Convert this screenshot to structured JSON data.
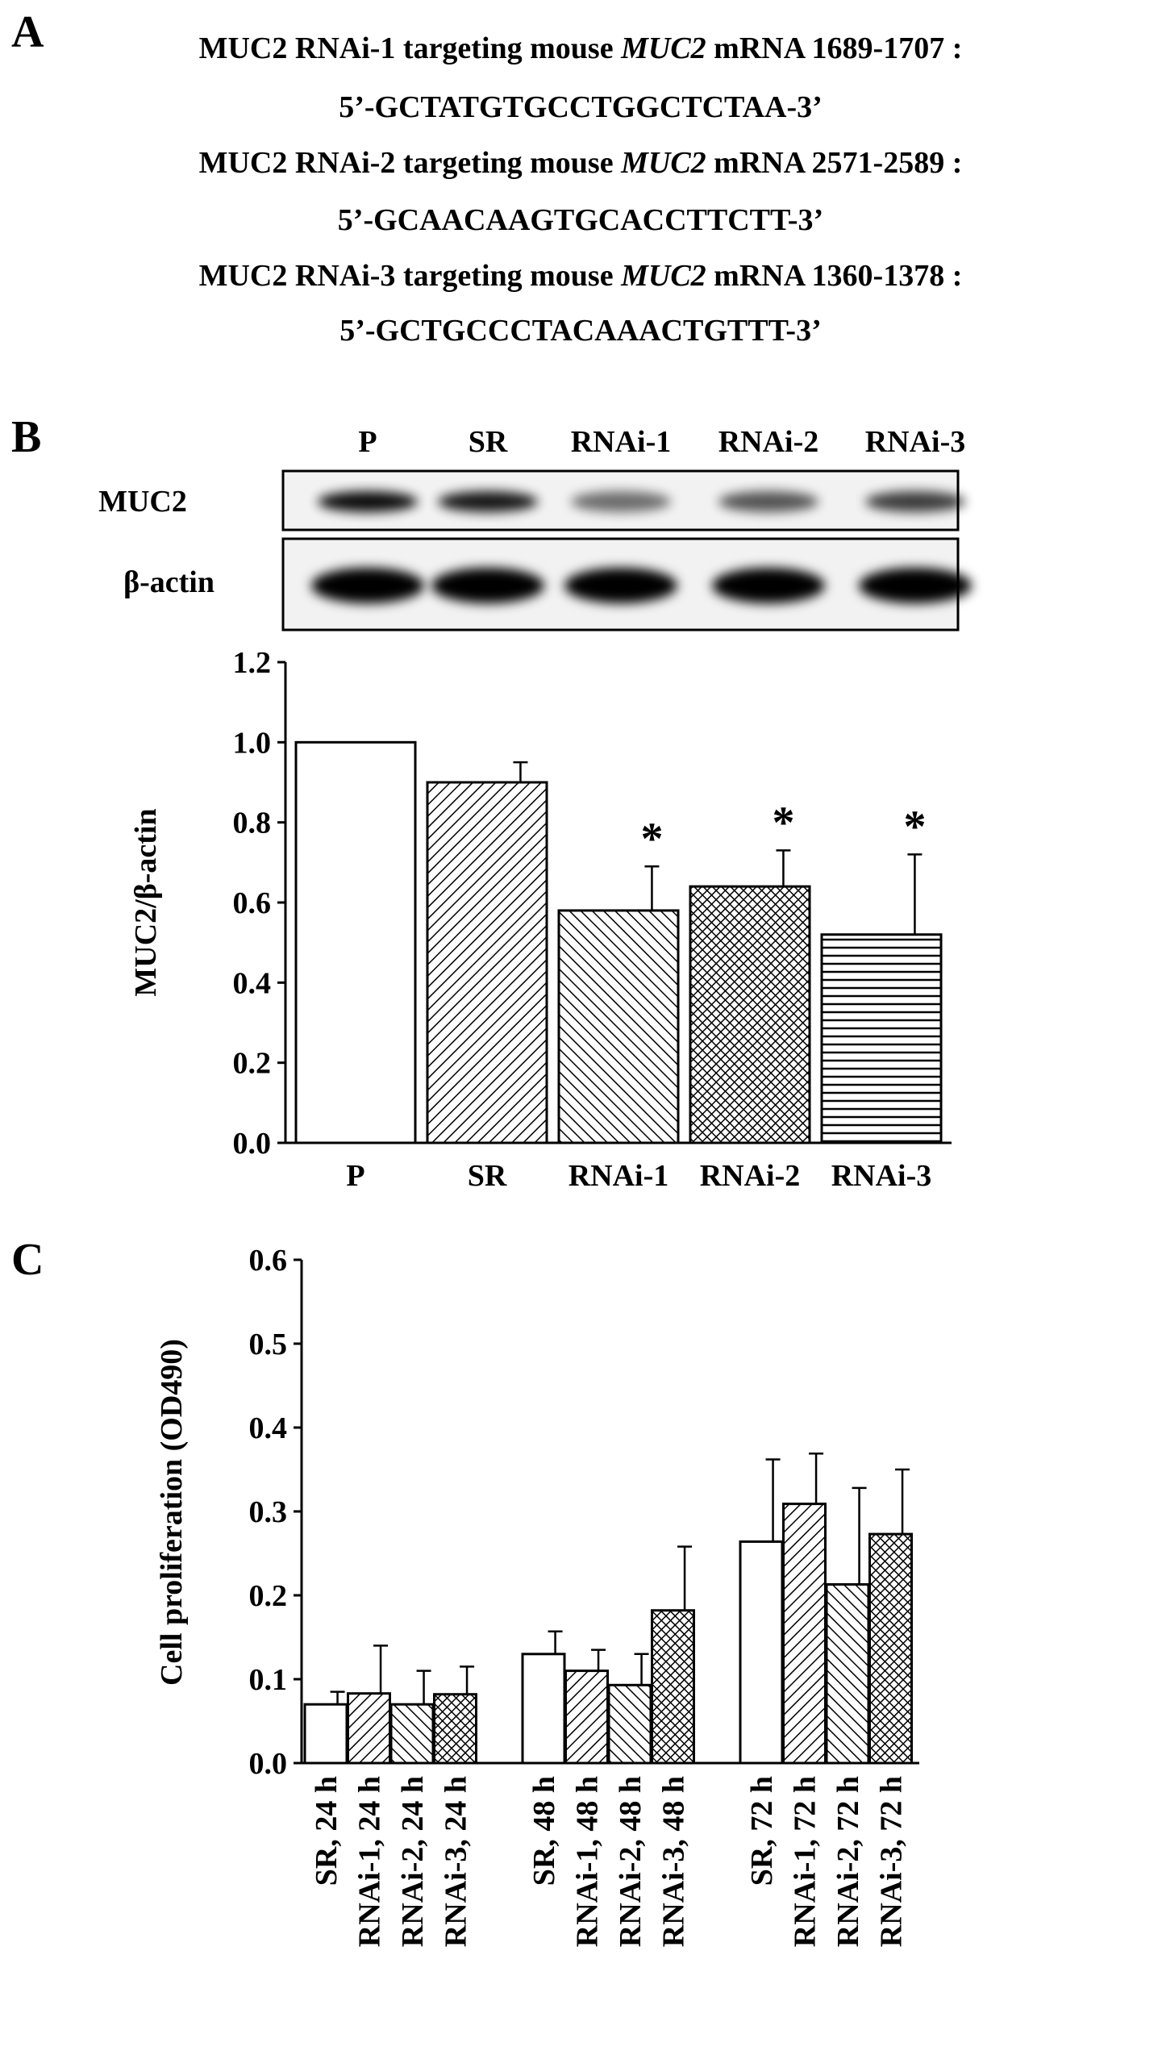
{
  "panel_a": {
    "label": "A",
    "lines": [
      {
        "before": "MUC2 RNAi-1 targeting mouse ",
        "italic": "MUC2",
        "after": " mRNA 1689-1707 :",
        "sequence": "5’-GCTATGTGCCTGGCTCTAA-3’"
      },
      {
        "before": "MUC2 RNAi-2 targeting mouse ",
        "italic": "MUC2",
        "after": " mRNA 2571-2589 :",
        "sequence": "5’-GCAACAAGTGCACCTTCTT-3’"
      },
      {
        "before": "MUC2 RNAi-3 targeting mouse ",
        "italic": "MUC2",
        "after": " mRNA 1360-1378 :",
        "sequence": "5’-GCTGCCCTACAAACTGTTT-3’"
      }
    ]
  },
  "blot": {
    "label": "B",
    "lanes": [
      "P",
      "SR",
      "RNAi-1",
      "RNAi-2",
      "RNAi-3"
    ],
    "rows": [
      "MUC2",
      "β-actin"
    ]
  },
  "chart_data": [
    {
      "type": "bar",
      "y_label": "MUC2/β-actin",
      "categories": [
        "P",
        "SR",
        "RNAi-1",
        "RNAi-2",
        "RNAi-3"
      ],
      "values": [
        1.0,
        0.9,
        0.58,
        0.64,
        0.52
      ],
      "errors": [
        null,
        0.05,
        0.11,
        0.09,
        0.2
      ],
      "significance": [
        null,
        null,
        "*",
        "*",
        "*"
      ],
      "patterns": [
        "none",
        "forward",
        "back",
        "cross",
        "horizontal"
      ],
      "color": "#000000",
      "ylim": [
        0,
        1.2
      ],
      "yticks": [
        {
          "value": 0,
          "label": "0.0"
        },
        {
          "value": 0.2,
          "label": "0.2"
        },
        {
          "value": 0.4,
          "label": "0.4"
        },
        {
          "value": 0.6,
          "label": "0.6"
        },
        {
          "value": 0.8,
          "label": "0.8"
        },
        {
          "value": 1.0,
          "label": "1.0"
        },
        {
          "value": 1.2,
          "label": "1.2"
        }
      ]
    },
    {
      "type": "bar",
      "panel_label": "C",
      "y_label": "Cell proliferation (OD490)",
      "categories": [
        "SR, 24 h",
        "RNAi-1, 24 h",
        "RNAi-2, 24 h",
        "RNAi-3, 24 h",
        "SR, 48 h",
        "RNAi-1, 48 h",
        "RNAi-2, 48 h",
        "RNAi-3, 48 h",
        "SR, 72 h",
        "RNAi-1, 72 h",
        "RNAi-2, 72 h",
        "RNAi-3, 72 h"
      ],
      "values": [
        0.07,
        0.083,
        0.07,
        0.082,
        0.13,
        0.11,
        0.093,
        0.182,
        0.264,
        0.309,
        0.213,
        0.273
      ],
      "errors": [
        0.015,
        0.057,
        0.04,
        0.033,
        0.027,
        0.025,
        0.037,
        0.076,
        0.098,
        0.06,
        0.115,
        0.077
      ],
      "patterns": [
        "none",
        "forward",
        "back",
        "cross",
        "none",
        "forward",
        "back",
        "cross",
        "none",
        "forward",
        "back",
        "cross"
      ],
      "color": "#000000",
      "ylim": [
        0,
        0.6
      ],
      "yticks": [
        {
          "value": 0,
          "label": "0.0"
        },
        {
          "value": 0.1,
          "label": "0.1"
        },
        {
          "value": 0.2,
          "label": "0.2"
        },
        {
          "value": 0.3,
          "label": "0.3"
        },
        {
          "value": 0.4,
          "label": "0.4"
        },
        {
          "value": 0.5,
          "label": "0.5"
        },
        {
          "value": 0.6,
          "label": "0.6"
        }
      ]
    }
  ]
}
